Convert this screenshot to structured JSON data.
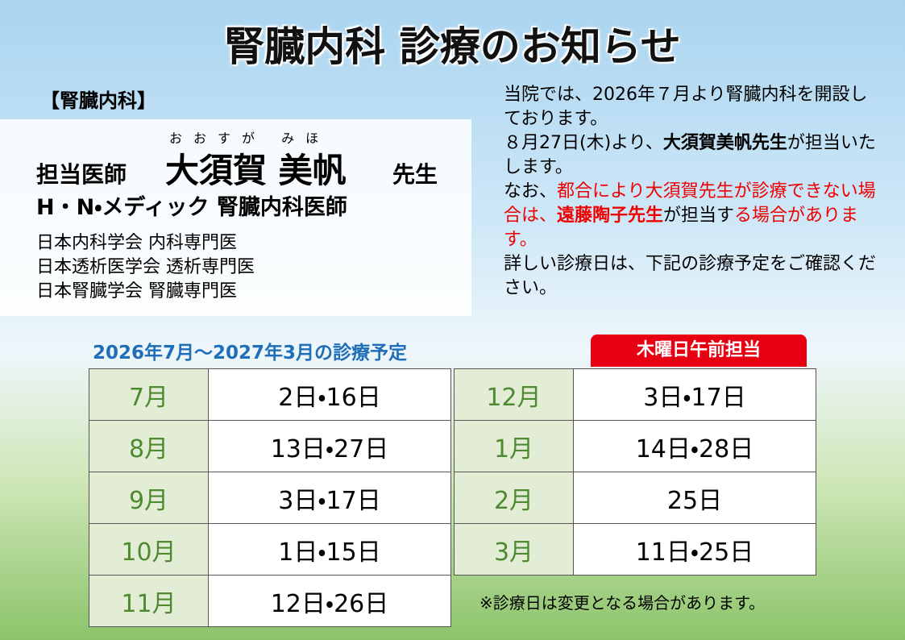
{
  "title": "腎臓内科 診療のお知らせ",
  "section_label": "【腎臓内科】",
  "doctor": {
    "role": "担当医師",
    "reading": "おおすが みほ",
    "name": "大須賀 美帆",
    "honorific": "先生",
    "affiliation": "H・N・メディック 腎臓内科医師",
    "credentials": [
      "日本内科学会 内科専門医",
      "日本透析医学会 透析専門医",
      "日本腎臓学会 腎臓専門医"
    ]
  },
  "notice": [
    {
      "segments": [
        {
          "text": "当院では、2026年７月より腎臓内科を開設しております。",
          "style": "plain"
        }
      ]
    },
    {
      "segments": [
        {
          "text": "８月27日(木)より、",
          "style": "plain"
        },
        {
          "text": "大須賀美帆先生",
          "style": "bold"
        },
        {
          "text": "が担当いたします。",
          "style": "plain"
        }
      ]
    },
    {
      "segments": [
        {
          "text": "なお、",
          "style": "plain"
        },
        {
          "text": "都合により大須賀先生が診療できない場合は、",
          "style": "red"
        },
        {
          "text": "遠藤陶子先生",
          "style": "red-bold"
        },
        {
          "text": "が担当す",
          "style": "plain"
        },
        {
          "text": "る場合があります。",
          "style": "red"
        }
      ]
    },
    {
      "segments": [
        {
          "text": "詳しい診療日は、下記の診療予定をご確認ください。",
          "style": "plain"
        }
      ]
    }
  ],
  "schedule": {
    "heading": "2026年7月～2027年3月の診療予定",
    "badge": "木曜日午前担当",
    "left": [
      [
        "7月",
        "2日・16日"
      ],
      [
        "8月",
        "13日・27日"
      ],
      [
        "9月",
        "3日・17日"
      ],
      [
        "10月",
        "1日・15日"
      ],
      [
        "11月",
        "12日・26日"
      ]
    ],
    "right": [
      [
        "12月",
        "3日・17日"
      ],
      [
        "1月",
        "14日・28日"
      ],
      [
        "2月",
        "25日"
      ],
      [
        "3月",
        "11日・25日"
      ]
    ],
    "note": "※診療日は変更となる場合があります。"
  }
}
